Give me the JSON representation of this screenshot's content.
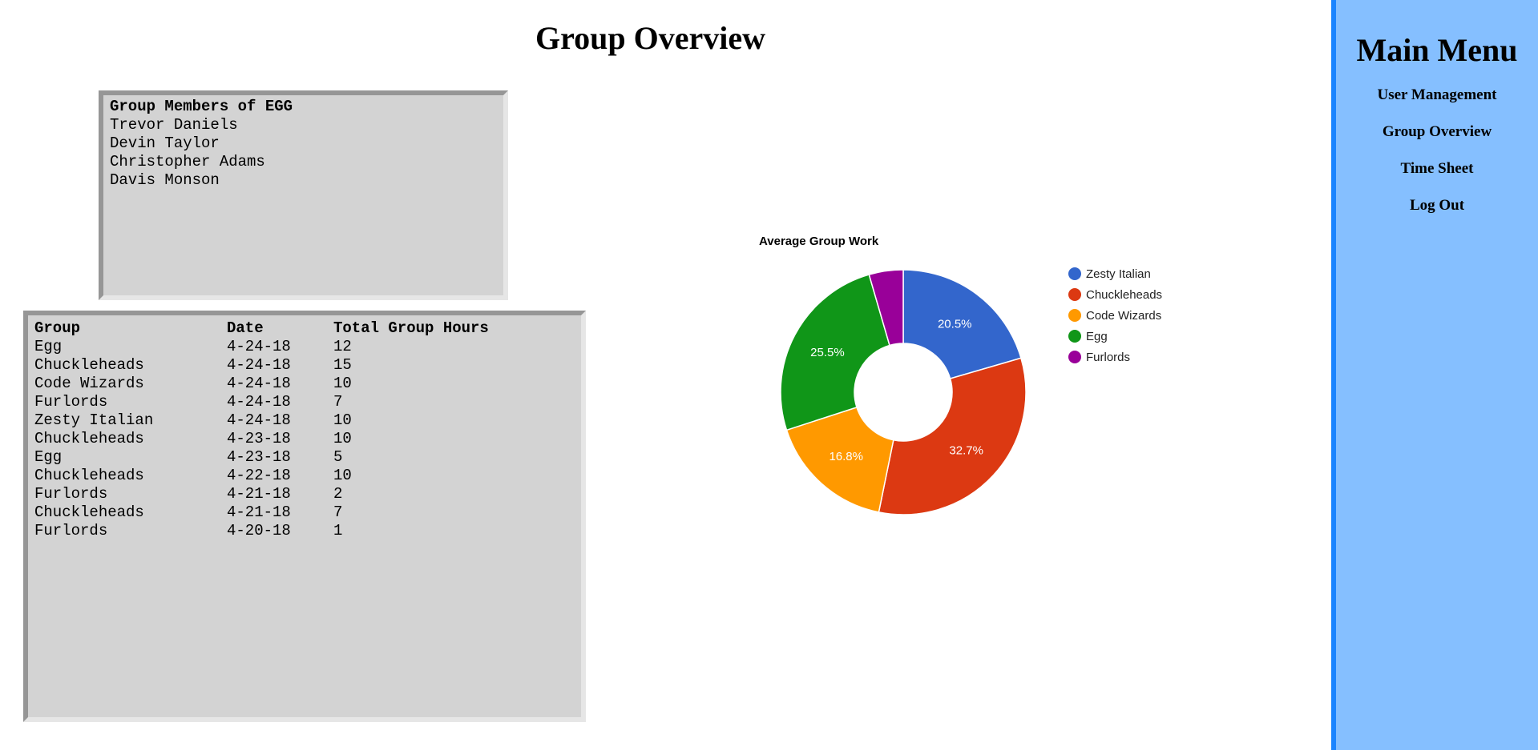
{
  "page": {
    "title": "Group Overview"
  },
  "members_panel": {
    "heading": "Group Members of EGG",
    "members": [
      "Trevor Daniels",
      "Devin Taylor",
      "Christopher Adams",
      "Davis Monson"
    ]
  },
  "hours_table": {
    "columns": [
      "Group",
      "Date",
      "Total Group Hours"
    ],
    "rows": [
      [
        "Egg",
        "4-24-18",
        "12"
      ],
      [
        "Chuckleheads",
        "4-24-18",
        "15"
      ],
      [
        "Code Wizards",
        "4-24-18",
        "10"
      ],
      [
        "Furlords",
        "4-24-18",
        "7"
      ],
      [
        "Zesty Italian",
        "4-24-18",
        "10"
      ],
      [
        "Chuckleheads",
        "4-23-18",
        "10"
      ],
      [
        "Egg",
        "4-23-18",
        "5"
      ],
      [
        "Chuckleheads",
        "4-22-18",
        "10"
      ],
      [
        "Furlords",
        "4-21-18",
        "2"
      ],
      [
        "Chuckleheads",
        "4-21-18",
        "7"
      ],
      [
        "Furlords",
        "4-20-18",
        "1"
      ]
    ]
  },
  "chart_data": {
    "type": "pie",
    "donut": true,
    "title": "Average Group Work",
    "legend_position": "right",
    "slices": [
      {
        "name": "Zesty Italian",
        "percent": 20.5,
        "label": "20.5%",
        "color": "#3366cc"
      },
      {
        "name": "Chuckleheads",
        "percent": 32.7,
        "label": "32.7%",
        "color": "#dc3912"
      },
      {
        "name": "Code Wizards",
        "percent": 16.8,
        "label": "16.8%",
        "color": "#ff9900"
      },
      {
        "name": "Egg",
        "percent": 25.5,
        "label": "25.5%",
        "color": "#109618"
      },
      {
        "name": "Furlords",
        "percent": 4.5,
        "label": "",
        "color": "#990099"
      }
    ]
  },
  "menu": {
    "title": "Main Menu",
    "items": [
      "User Management",
      "Group Overview",
      "Time Sheet",
      "Log Out"
    ],
    "background": "#85bfff",
    "border": "#1a84ff"
  }
}
